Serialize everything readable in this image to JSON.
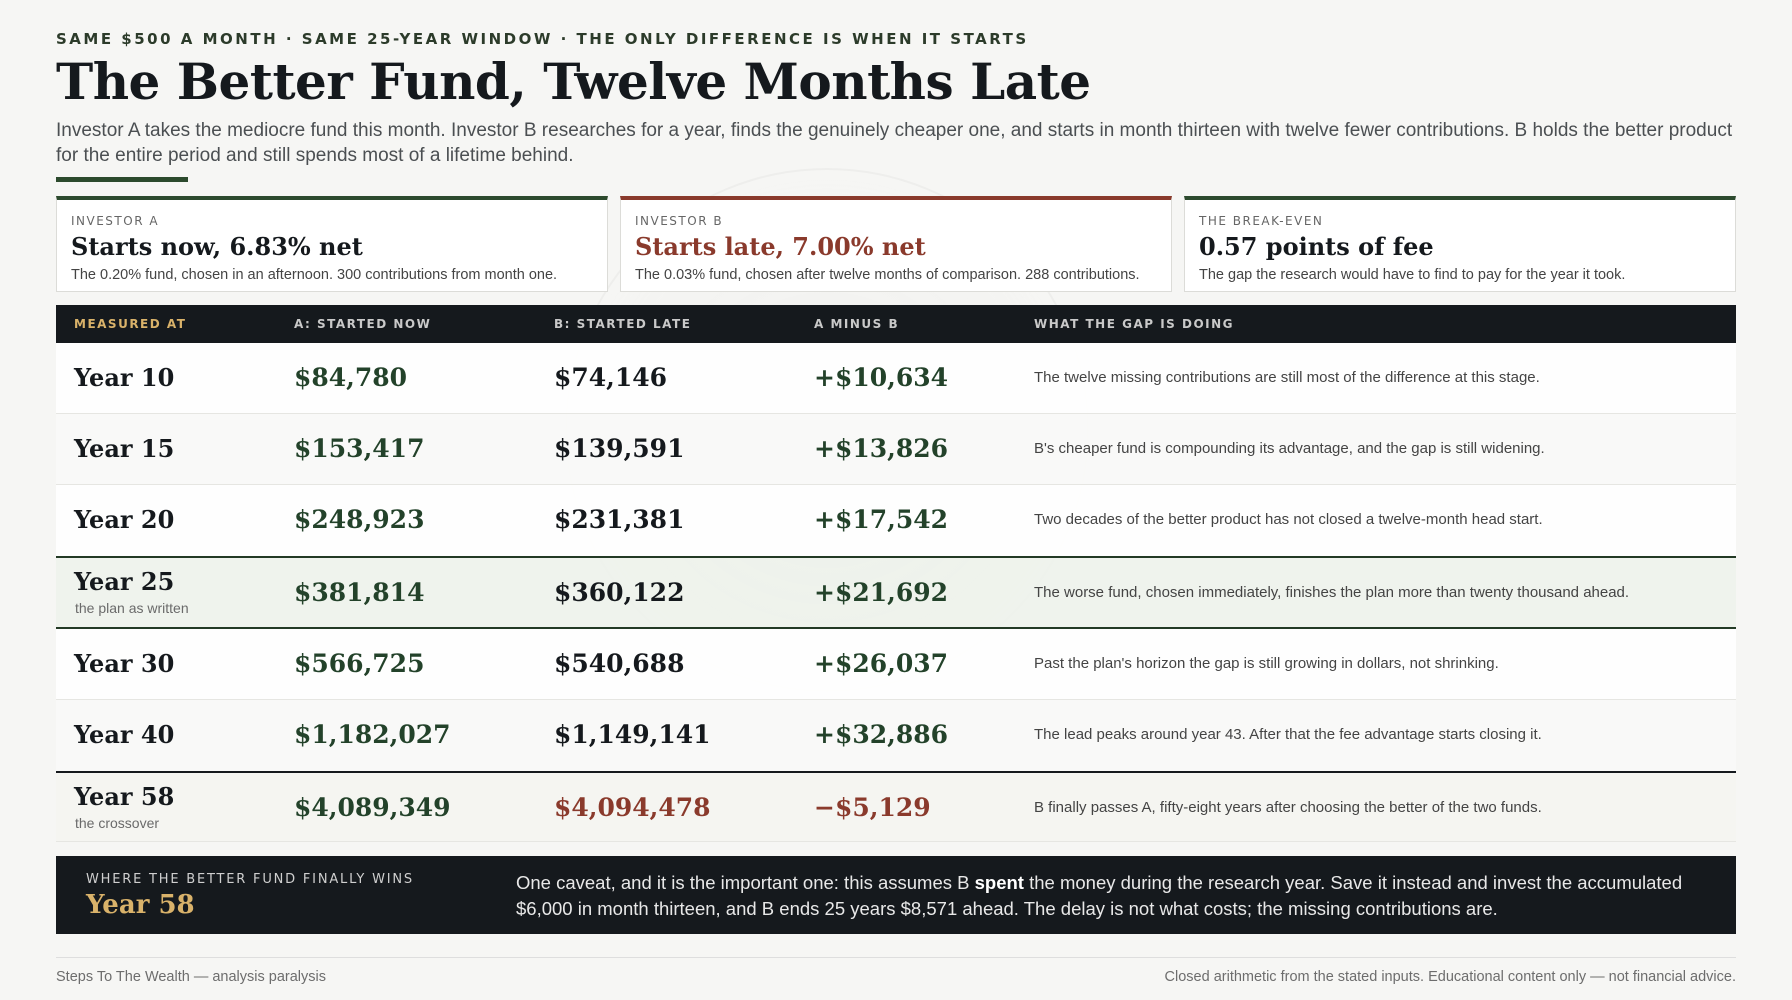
{
  "kicker": "SAME $500 A MONTH · SAME 25-YEAR WINDOW · THE ONLY DIFFERENCE IS WHEN IT STARTS",
  "title": "The Better Fund, Twelve Months Late",
  "dek": "Investor A takes the mediocre fund this month. Investor B researches for a year, finds the genuinely cheaper one, and starts in month thirteen with twelve fewer contributions. B holds the better product for the entire period and still spends most of a lifetime behind.",
  "cards": [
    {
      "label": "INVESTOR A",
      "value": "Starts now, 6.83% net",
      "desc": "The 0.20% fund, chosen in an afternoon. 300 contributions from month one."
    },
    {
      "label": "INVESTOR B",
      "value": "Starts late, 7.00% net",
      "desc": "The 0.03% fund, chosen after twelve months of comparison. 288 contributions."
    },
    {
      "label": "THE BREAK-EVEN",
      "value": "0.57 points of fee",
      "desc": "The gap the research would have to find to pay for the year it took."
    }
  ],
  "table": {
    "headers": [
      "MEASURED AT",
      "A: STARTED NOW",
      "B: STARTED LATE",
      "A MINUS B",
      "WHAT THE GAP IS DOING"
    ],
    "rows": [
      {
        "year": "Year 10",
        "note": "",
        "a": "$84,780",
        "b": "$74,146",
        "diff": "+$10,634",
        "what": "The twelve missing contributions are still most of the difference at this stage."
      },
      {
        "year": "Year 15",
        "note": "",
        "a": "$153,417",
        "b": "$139,591",
        "diff": "+$13,826",
        "what": "B's cheaper fund is compounding its advantage, and the gap is still widening."
      },
      {
        "year": "Year 20",
        "note": "",
        "a": "$248,923",
        "b": "$231,381",
        "diff": "+$17,542",
        "what": "Two decades of the better product has not closed a twelve-month head start."
      },
      {
        "year": "Year 25",
        "note": "the plan as written",
        "a": "$381,814",
        "b": "$360,122",
        "diff": "+$21,692",
        "what": "The worse fund, chosen immediately, finishes the plan more than twenty thousand ahead."
      },
      {
        "year": "Year 30",
        "note": "",
        "a": "$566,725",
        "b": "$540,688",
        "diff": "+$26,037",
        "what": "Past the plan's horizon the gap is still growing in dollars, not shrinking."
      },
      {
        "year": "Year 40",
        "note": "",
        "a": "$1,182,027",
        "b": "$1,149,141",
        "diff": "+$32,886",
        "what": "The lead peaks around year 43. After that the fee advantage starts closing it."
      },
      {
        "year": "Year 58",
        "note": "the crossover",
        "a": "$4,089,349",
        "b": "$4,094,478",
        "diff": "−$5,129",
        "what": "B finally passes A, fifty-eight years after choosing the better of the two funds."
      }
    ]
  },
  "callout": {
    "label": "WHERE THE BETTER FUND FINALLY WINS",
    "year": "Year 58",
    "text_before": "One caveat, and it is the important one: this assumes B ",
    "text_bold": "spent",
    "text_after": " the money during the research year. Save it instead and invest the accumulated $6,000 in month thirteen, and B ends 25 years $8,571 ahead. The delay is not what costs; the missing contributions are."
  },
  "footer": {
    "left": "Steps To The Wealth — analysis paralysis",
    "right": "Closed arithmetic from the stated inputs. Educational content only — not financial advice."
  }
}
